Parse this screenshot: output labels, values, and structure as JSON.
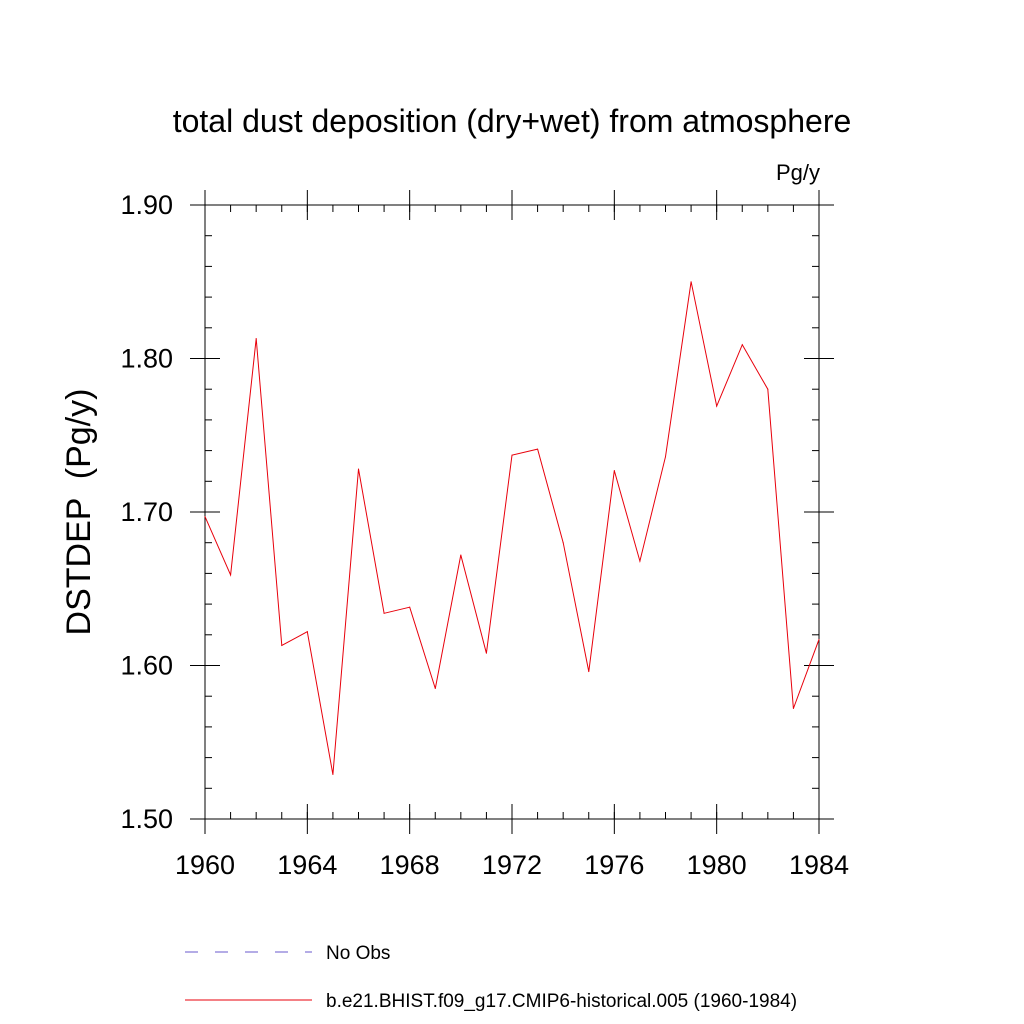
{
  "chart_data": {
    "type": "line",
    "title": "total dust deposition (dry+wet) from atmosphere",
    "units_label": "Pg/y",
    "ylabel": "DSTDEP  (Pg/y)",
    "xlabel": "",
    "xlim": [
      1960,
      1984
    ],
    "ylim": [
      1.5,
      1.9
    ],
    "x_ticks": [
      1960,
      1964,
      1968,
      1972,
      1976,
      1980,
      1984
    ],
    "x_tick_labels": [
      "1960",
      "1964",
      "1968",
      "1972",
      "1976",
      "1980",
      "1984"
    ],
    "y_ticks": [
      1.5,
      1.6,
      1.7,
      1.8,
      1.9
    ],
    "y_tick_labels": [
      "1.50",
      "1.60",
      "1.70",
      "1.80",
      "1.90"
    ],
    "x_minor_step": 1,
    "y_minor_step": 0.02,
    "grid": false,
    "legend_position": "bottom",
    "series": [
      {
        "name": "b.e21.BHIST.f09_g17.CMIP6-historical.005 (1960-1984)",
        "color": "#e8000b",
        "dash": "solid",
        "x": [
          1960,
          1961,
          1962,
          1963,
          1964,
          1965,
          1966,
          1967,
          1968,
          1969,
          1970,
          1971,
          1972,
          1973,
          1974,
          1975,
          1976,
          1977,
          1978,
          1979,
          1980,
          1981,
          1982,
          1983,
          1984
        ],
        "values": [
          1.697,
          1.659,
          1.813,
          1.613,
          1.622,
          1.529,
          1.728,
          1.634,
          1.638,
          1.585,
          1.672,
          1.608,
          1.737,
          1.741,
          1.68,
          1.596,
          1.727,
          1.668,
          1.736,
          1.85,
          1.769,
          1.809,
          1.78,
          1.572,
          1.617
        ]
      }
    ],
    "legend": [
      {
        "label": "No Obs",
        "color": "#6a5acd",
        "dash": "dashed"
      },
      {
        "label": "b.e21.BHIST.f09_g17.CMIP6-historical.005 (1960-1984)",
        "color": "#e8000b",
        "dash": "solid"
      }
    ]
  }
}
